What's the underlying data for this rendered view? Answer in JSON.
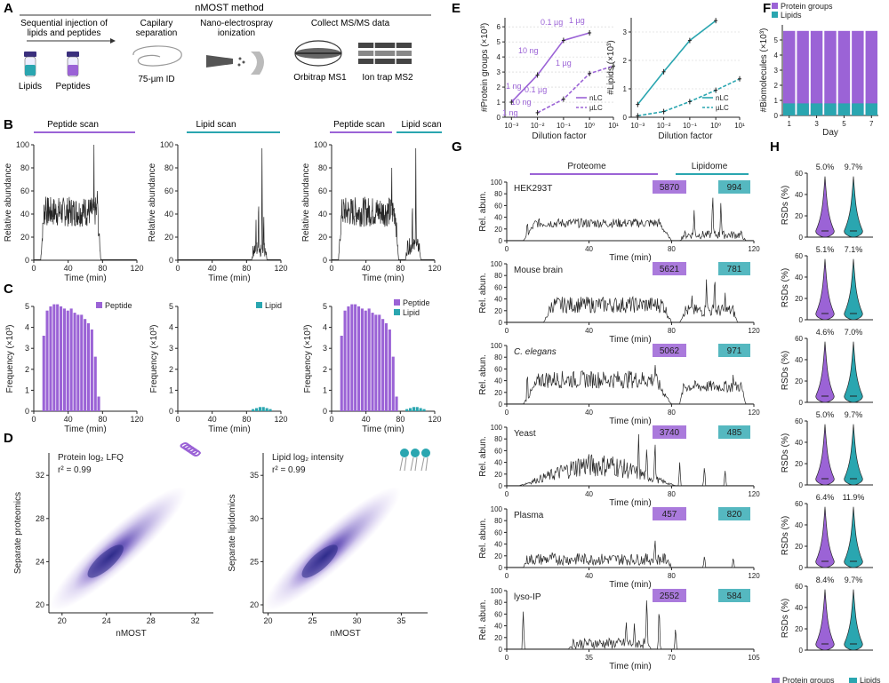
{
  "colors": {
    "purple": "#9b63d6",
    "teal": "#2aa6b0",
    "trace": "#262626",
    "grid": "#d0d0d0",
    "axis": "#222222",
    "density": "#4a3a9e"
  },
  "panelA": {
    "letter": "A",
    "title": "nMOST method",
    "step1": [
      "Sequential injection of",
      "lipids and peptides"
    ],
    "vial1": "Lipids",
    "vial2": "Peptides",
    "step2": [
      "Capilary",
      "separation"
    ],
    "capillary": "75-µm ID",
    "step3": [
      "Nano-electrospray",
      "ionization"
    ],
    "step4": "Collect MS/MS data",
    "ms1": "Orbitrap MS1",
    "ms2": "Ion trap MS2"
  },
  "panelB": {
    "letter": "B",
    "ylabel": "Relative abundance",
    "xlabel": "Time (min)",
    "scan_peptide": "Peptide scan",
    "scan_lipid": "Lipid scan",
    "yticks": [
      "0",
      "20",
      "40",
      "60",
      "80",
      "100"
    ],
    "xticks": [
      "0",
      "40",
      "80",
      "120"
    ]
  },
  "panelC": {
    "letter": "C",
    "ylabel": "Frequency (×10³)",
    "xlabel": "Time (min)",
    "yticks": [
      "0",
      "1",
      "2",
      "3",
      "4",
      "5"
    ],
    "xticks": [
      "0",
      "40",
      "80",
      "120"
    ],
    "legend_peptide": "Peptide",
    "legend_lipid": "Lipid"
  },
  "panelD": {
    "letter": "D",
    "left": {
      "title": "Protein log₂ LFQ",
      "r2": "r² = 0.99",
      "ylabel": "Separate proteomics",
      "xlabel": "nMOST",
      "xticks": [
        "20",
        "24",
        "28",
        "32"
      ],
      "yticks": [
        "20",
        "24",
        "28",
        "32"
      ]
    },
    "right": {
      "title": "Lipid log₂ intensity",
      "r2": "r² = 0.99",
      "ylabel": "Separate lipidomics",
      "xlabel": "nMOST",
      "xticks": [
        "20",
        "25",
        "30",
        "35"
      ],
      "yticks": [
        "20",
        "25",
        "30",
        "35"
      ]
    }
  },
  "panelE": {
    "letter": "E",
    "xlabel": "Dilution factor",
    "xticks": [
      "10⁻³",
      "10⁻²",
      "10⁻¹",
      "10⁰",
      "10¹"
    ],
    "left_ylabel": "#Protein groups (×10³)",
    "left_yticks": [
      "0",
      "1",
      "2",
      "3",
      "4",
      "5",
      "6"
    ],
    "right_ylabel": "#Lipids (×10³)",
    "right_yticks": [
      "0",
      "1",
      "2",
      "3"
    ],
    "legend_nlc": "nLC",
    "legend_ulc": "µLC",
    "ann": [
      "1 µg",
      "0.1 µg",
      "10 ng",
      "1 ng",
      "1 µg",
      "0.1 µg",
      "10 ng",
      "1 ng"
    ]
  },
  "panelF": {
    "letter": "F",
    "legend_protein": "Protein groups",
    "legend_lipids": "Lipids",
    "ylabel": "#Biomolecules (×10³)",
    "xlabel": "Day",
    "yticks": [
      "0",
      "1",
      "2",
      "3",
      "4",
      "5"
    ],
    "xticks": [
      "1",
      "3",
      "5",
      "7"
    ]
  },
  "panelG": {
    "letter": "G",
    "proteome": "Proteome",
    "lipidome": "Lipidome",
    "ylabel": "Rel. abun.",
    "xlabel": "Time (min)",
    "yticks": [
      "0",
      "20",
      "40",
      "60",
      "80",
      "100"
    ],
    "samples": [
      {
        "name": "HEK293T",
        "proteins": "5870",
        "lipids": "994",
        "xticks": [
          "0",
          "40",
          "80",
          "120"
        ]
      },
      {
        "name": "Mouse brain",
        "proteins": "5621",
        "lipids": "781",
        "xticks": [
          "0",
          "40",
          "80",
          "120"
        ]
      },
      {
        "name": "C. elegans",
        "proteins": "5062",
        "lipids": "971",
        "xticks": [
          "0",
          "40",
          "80",
          "120"
        ]
      },
      {
        "name": "Yeast",
        "proteins": "3740",
        "lipids": "485",
        "xticks": [
          "0",
          "40",
          "80",
          "120"
        ]
      },
      {
        "name": "Plasma",
        "proteins": "457",
        "lipids": "820",
        "xticks": [
          "0",
          "40",
          "80",
          "120"
        ]
      },
      {
        "name": "lyso-IP",
        "proteins": "2552",
        "lipids": "584",
        "xticks": [
          "0",
          "35",
          "70",
          "105"
        ]
      }
    ]
  },
  "panelH": {
    "letter": "H",
    "ylabel": "RSDs (%)",
    "yticks": [
      "0",
      "20",
      "40",
      "60"
    ],
    "rows": [
      {
        "protein": "5.0%",
        "lipid": "9.7%"
      },
      {
        "protein": "5.1%",
        "lipid": "7.1%"
      },
      {
        "protein": "4.6%",
        "lipid": "7.0%"
      },
      {
        "protein": "5.0%",
        "lipid": "9.7%"
      },
      {
        "protein": "6.4%",
        "lipid": "11.9%"
      },
      {
        "protein": "8.4%",
        "lipid": "9.7%"
      }
    ],
    "legend_protein": "Protein groups",
    "legend_lipids": "Lipids"
  },
  "chart_data": [
    {
      "type": "line",
      "panel": "E-left",
      "title": "",
      "xlabel": "Dilution factor",
      "ylabel": "#Protein groups (×10³)",
      "x": [
        "10⁻³",
        "10⁻²",
        "10⁻¹",
        "10⁰",
        "10¹"
      ],
      "xscale": "log",
      "ylim": [
        0,
        6.6
      ],
      "series": [
        {
          "name": "nLC",
          "values": [
            1.0,
            2.8,
            5.1,
            5.6,
            null
          ]
        },
        {
          "name": "µLC",
          "values": [
            null,
            0.3,
            1.2,
            2.9,
            3.4
          ]
        }
      ]
    },
    {
      "type": "line",
      "panel": "E-right",
      "title": "",
      "xlabel": "Dilution factor",
      "ylabel": "#Lipids (×10³)",
      "x": [
        "10⁻³",
        "10⁻²",
        "10⁻¹",
        "10⁰",
        "10¹"
      ],
      "xscale": "log",
      "ylim": [
        0,
        3.5
      ],
      "series": [
        {
          "name": "nLC",
          "values": [
            0.45,
            1.6,
            2.7,
            3.4,
            null
          ]
        },
        {
          "name": "µLC",
          "values": [
            0.05,
            0.2,
            0.55,
            0.95,
            1.35
          ]
        }
      ]
    },
    {
      "type": "bar",
      "panel": "F",
      "title": "",
      "xlabel": "Day",
      "ylabel": "#Biomolecules (×10³)",
      "categories": [
        "1",
        "2",
        "3",
        "4",
        "5",
        "6",
        "7"
      ],
      "ylim": [
        0,
        6
      ],
      "series": [
        {
          "name": "Protein groups",
          "values": [
            5.6,
            5.6,
            5.6,
            5.6,
            5.6,
            5.6,
            5.6
          ]
        },
        {
          "name": "Lipids",
          "values": [
            0.8,
            0.8,
            0.8,
            0.8,
            0.8,
            0.8,
            0.8
          ]
        }
      ]
    },
    {
      "type": "bar",
      "panel": "C-left",
      "title": "",
      "xlabel": "Time (min)",
      "ylabel": "Frequency (×10³)",
      "xlim": [
        0,
        120
      ],
      "ylim": [
        0,
        5
      ],
      "series": [
        {
          "name": "Peptide",
          "x": [
            12,
            16,
            20,
            24,
            28,
            32,
            36,
            40,
            44,
            48,
            52,
            56,
            60,
            64,
            68,
            72,
            76
          ],
          "values": [
            3.6,
            4.8,
            5.0,
            5.1,
            5.1,
            5.0,
            4.9,
            4.8,
            4.9,
            4.7,
            4.6,
            4.6,
            4.4,
            4.2,
            3.9,
            2.6,
            0.7
          ]
        }
      ]
    },
    {
      "type": "bar",
      "panel": "C-middle",
      "title": "",
      "xlabel": "Time (min)",
      "ylabel": "Frequency (×10³)",
      "xlim": [
        0,
        120
      ],
      "ylim": [
        0,
        5
      ],
      "series": [
        {
          "name": "Lipid",
          "x": [
            88,
            92,
            96,
            100,
            104,
            108
          ],
          "values": [
            0.1,
            0.15,
            0.2,
            0.2,
            0.15,
            0.1
          ]
        }
      ]
    },
    {
      "type": "bar",
      "panel": "C-right",
      "title": "",
      "xlabel": "Time (min)",
      "ylabel": "Frequency (×10³)",
      "xlim": [
        0,
        120
      ],
      "ylim": [
        0,
        5
      ],
      "series": [
        {
          "name": "Peptide",
          "x": [
            12,
            16,
            20,
            24,
            28,
            32,
            36,
            40,
            44,
            48,
            52,
            56,
            60,
            64,
            68,
            72,
            76
          ],
          "values": [
            3.6,
            4.8,
            5.0,
            5.1,
            5.1,
            5.0,
            4.9,
            4.8,
            4.9,
            4.7,
            4.6,
            4.6,
            4.4,
            4.2,
            3.9,
            2.6,
            0.7
          ]
        },
        {
          "name": "Lipid",
          "x": [
            88,
            92,
            96,
            100,
            104,
            108
          ],
          "values": [
            0.1,
            0.15,
            0.2,
            0.2,
            0.15,
            0.1
          ]
        }
      ]
    },
    {
      "type": "scatter",
      "panel": "D",
      "title": "Protein log₂ LFQ / Lipid log₂ intensity",
      "xlabel": "nMOST",
      "ylabel": "Separate proteomics / lipidomics",
      "r2": [
        0.99,
        0.99
      ]
    }
  ]
}
